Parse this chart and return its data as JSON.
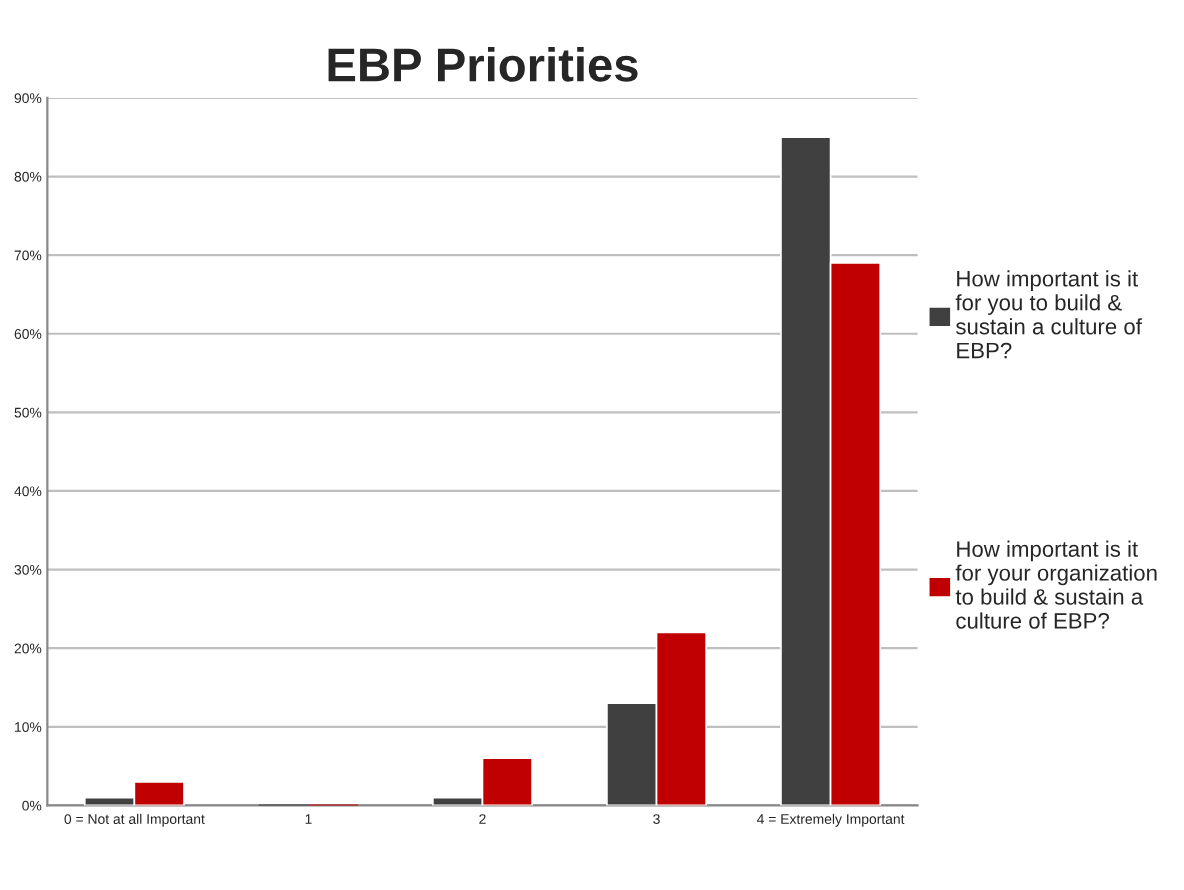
{
  "chart_data": {
    "type": "bar",
    "title": "EBP Priorities",
    "categories": [
      "0 = Not at all Important",
      "1",
      "2",
      "3",
      "4 = Extremely Important"
    ],
    "series": [
      {
        "name": "How important is it\nfor you to build &\nsustain a culture of\nEBP?",
        "color": "#404040",
        "values": [
          1,
          0,
          1,
          13,
          85
        ]
      },
      {
        "name": "How important is it\nfor your organization\nto build & sustain a\nculture of EBP?",
        "color": "#c00000",
        "values": [
          3,
          0,
          6,
          22,
          69
        ]
      }
    ],
    "ylim": [
      0,
      90
    ],
    "yticks": [
      {
        "value": 0,
        "label": "0%"
      },
      {
        "value": 10,
        "label": "10%"
      },
      {
        "value": 20,
        "label": "20%"
      },
      {
        "value": 30,
        "label": "30%"
      },
      {
        "value": 40,
        "label": "40%"
      },
      {
        "value": 50,
        "label": "50%"
      },
      {
        "value": 60,
        "label": "60%"
      },
      {
        "value": 70,
        "label": "70%"
      },
      {
        "value": 80,
        "label": "80%"
      },
      {
        "value": 90,
        "label": "90%"
      }
    ],
    "grid": "y",
    "legend": "right"
  }
}
